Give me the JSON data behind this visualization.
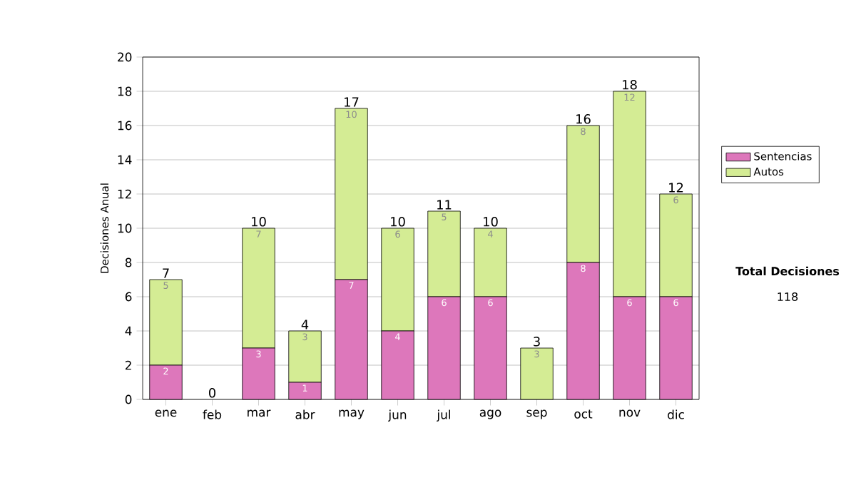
{
  "chart_data": {
    "type": "bar",
    "stacked": true,
    "ylabel": "Decisiones Anual",
    "categories": [
      "ene",
      "feb",
      "mar",
      "abr",
      "may",
      "jun",
      "jul",
      "ago",
      "sep",
      "oct",
      "nov",
      "dic"
    ],
    "series": [
      {
        "name": "Sentencias",
        "color": "#dd77bb",
        "values": [
          2,
          0,
          3,
          1,
          7,
          4,
          6,
          6,
          0,
          8,
          6,
          6
        ],
        "value_labels": [
          "2",
          null,
          "3",
          "1",
          "7",
          "4",
          "6",
          "6",
          null,
          "8",
          "6",
          "6"
        ]
      },
      {
        "name": "Autos",
        "color": "#d4ec94",
        "values": [
          5,
          0,
          7,
          3,
          10,
          6,
          5,
          4,
          3,
          8,
          12,
          6
        ],
        "value_labels": [
          "5",
          null,
          "7",
          "3",
          "10",
          "6",
          "5",
          "4",
          "3",
          "8",
          "12",
          "6"
        ]
      }
    ],
    "totals": [
      "7",
      "0",
      "10",
      "4",
      "17",
      "10",
      "11",
      "10",
      "3",
      "16",
      "18",
      "12"
    ],
    "ylim": [
      0,
      20
    ],
    "yticks": [
      0,
      2,
      4,
      6,
      8,
      10,
      12,
      14,
      16,
      18,
      20
    ],
    "grid": "y",
    "legend": "right",
    "annotations": [
      "Total Decisiones",
      "118"
    ]
  }
}
